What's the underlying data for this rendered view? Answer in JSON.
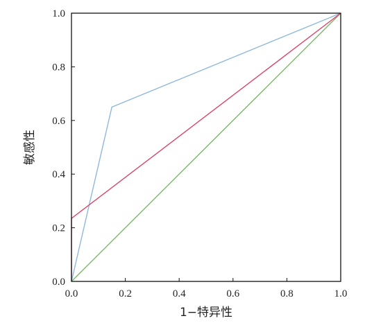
{
  "chart_data": {
    "type": "line",
    "xlabel": "1−特异性",
    "ylabel": "敏感性",
    "xlim": [
      0,
      1
    ],
    "ylim": [
      0,
      1
    ],
    "x_ticks": [
      "0.0",
      "0.2",
      "0.4",
      "0.6",
      "0.8",
      "1.0"
    ],
    "y_ticks": [
      "0.0",
      "0.2",
      "0.4",
      "0.6",
      "0.8",
      "1.0"
    ],
    "grid": false,
    "series": [
      {
        "color": "#8fb8dc",
        "points": [
          [
            0,
            0
          ],
          [
            0.15,
            0.65
          ],
          [
            1,
            1
          ]
        ]
      },
      {
        "color": "#d9466a",
        "points": [
          [
            0,
            0
          ],
          [
            0,
            0.235
          ],
          [
            1,
            1
          ]
        ]
      },
      {
        "color": "#7ab86a",
        "points": [
          [
            0,
            0
          ],
          [
            1,
            1
          ]
        ]
      }
    ]
  }
}
